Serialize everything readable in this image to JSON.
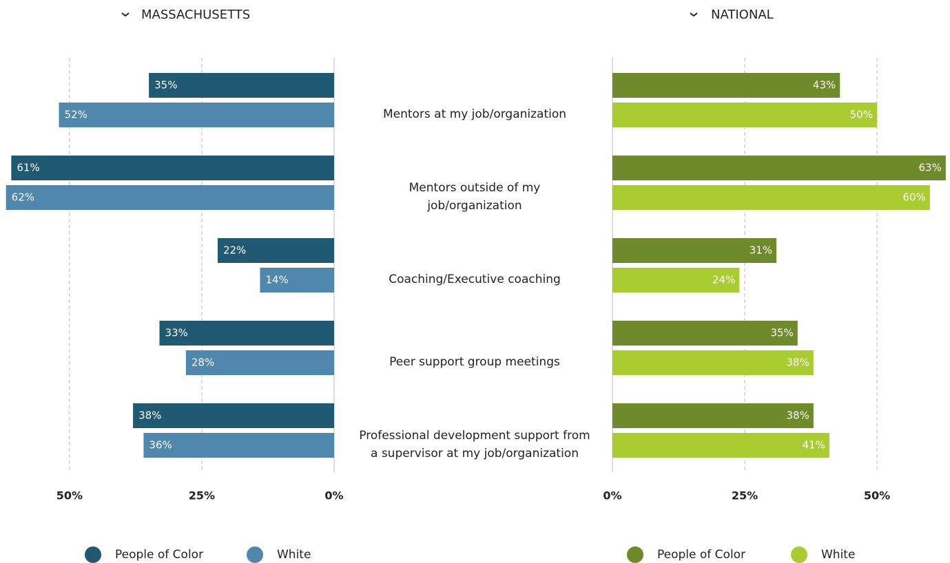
{
  "chart_data": [
    {
      "type": "bar",
      "orientation": "horizontal",
      "reversed": true,
      "title": "MASSACHUSETTS",
      "categories": [
        "Mentors at my job/organization",
        "Mentors outside of my\njob/organization",
        "Coaching/Executive coaching",
        "Peer support group meetings",
        "Professional development support from\na supervisor at my job/organization"
      ],
      "series": [
        {
          "name": "People of Color",
          "color": "#1f5a72",
          "values": [
            35,
            61,
            22,
            33,
            38
          ],
          "value_labels": [
            "35%",
            "61%",
            "22%",
            "33%",
            "38%"
          ]
        },
        {
          "name": "White",
          "color": "#4f87ad",
          "values": [
            52,
            62,
            14,
            28,
            36
          ],
          "value_labels": [
            "52%",
            "62%",
            "14%",
            "28%",
            "36%"
          ]
        }
      ],
      "xlim": [
        0,
        63
      ],
      "xticks": [
        {
          "value": 0,
          "label": "0%"
        },
        {
          "value": 25,
          "label": "25%"
        },
        {
          "value": 50,
          "label": "50%"
        }
      ],
      "grid": true
    },
    {
      "type": "bar",
      "orientation": "horizontal",
      "reversed": false,
      "title": "NATIONAL",
      "series": [
        {
          "name": "People of Color",
          "color": "#6e8a2a",
          "values": [
            43,
            63,
            31,
            35,
            38
          ],
          "value_labels": [
            "43%",
            "63%",
            "31%",
            "35%",
            "38%"
          ]
        },
        {
          "name": "White",
          "color": "#a9cc30",
          "values": [
            50,
            60,
            24,
            38,
            41
          ],
          "value_labels": [
            "50%",
            "60%",
            "24%",
            "38%",
            "41%"
          ]
        }
      ],
      "xlim": [
        0,
        63.8
      ],
      "xticks": [
        {
          "value": 0,
          "label": "0%"
        },
        {
          "value": 25,
          "label": "25%"
        },
        {
          "value": 50,
          "label": "50%"
        }
      ],
      "grid": true
    }
  ]
}
